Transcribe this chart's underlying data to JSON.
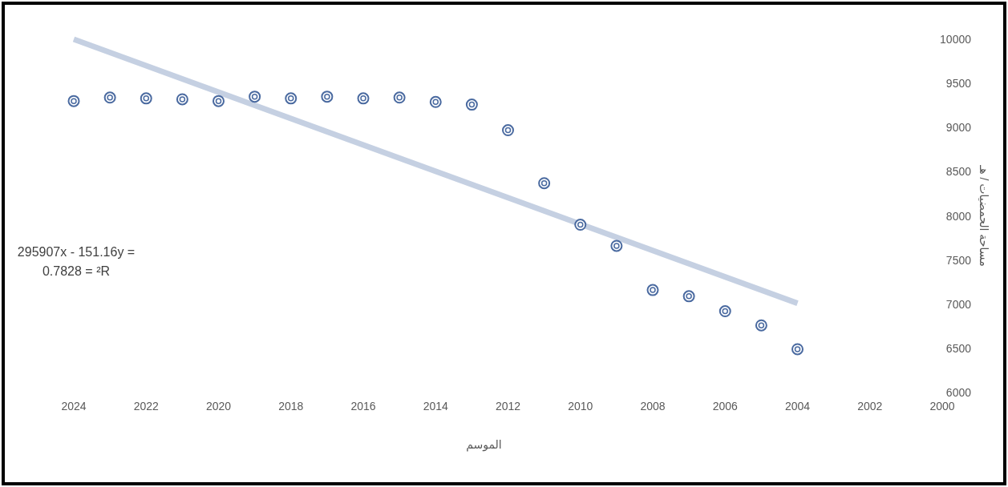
{
  "chart_data": {
    "type": "scatter",
    "xlabel": "الموسم",
    "ylabel": "مساحة الحمضيات / هـ",
    "x": [
      2024,
      2023,
      2022,
      2021,
      2020,
      2019,
      2018,
      2017,
      2016,
      2015,
      2014,
      2013,
      2012,
      2011,
      2010,
      2009,
      2008,
      2007,
      2006,
      2005,
      2004
    ],
    "series": [
      {
        "color": "#4a6aa0",
        "marker": "circle",
        "values": [
          9300,
          9340,
          9330,
          9320,
          9300,
          9350,
          9330,
          9350,
          9330,
          9340,
          9290,
          9260,
          8970,
          8370,
          7900,
          7660,
          7160,
          7090,
          6920,
          6760,
          6490
        ]
      },
      {
        "type": "line",
        "color": "#c5d0e2",
        "x": [
          2024,
          2004
        ],
        "values": [
          10000,
          7010
        ]
      }
    ],
    "xlim": [
      2024,
      2000
    ],
    "xticks": [
      2024,
      2022,
      2020,
      2018,
      2016,
      2014,
      2012,
      2010,
      2008,
      2006,
      2004,
      2002,
      2000
    ],
    "ylim": [
      6000,
      10000
    ],
    "yticks": [
      6000,
      6500,
      7000,
      7500,
      8000,
      8500,
      9000,
      9500,
      10000
    ],
    "annotations": [
      "295907x - 151.16y =",
      "0.7828 = ²R"
    ],
    "grid": false
  }
}
